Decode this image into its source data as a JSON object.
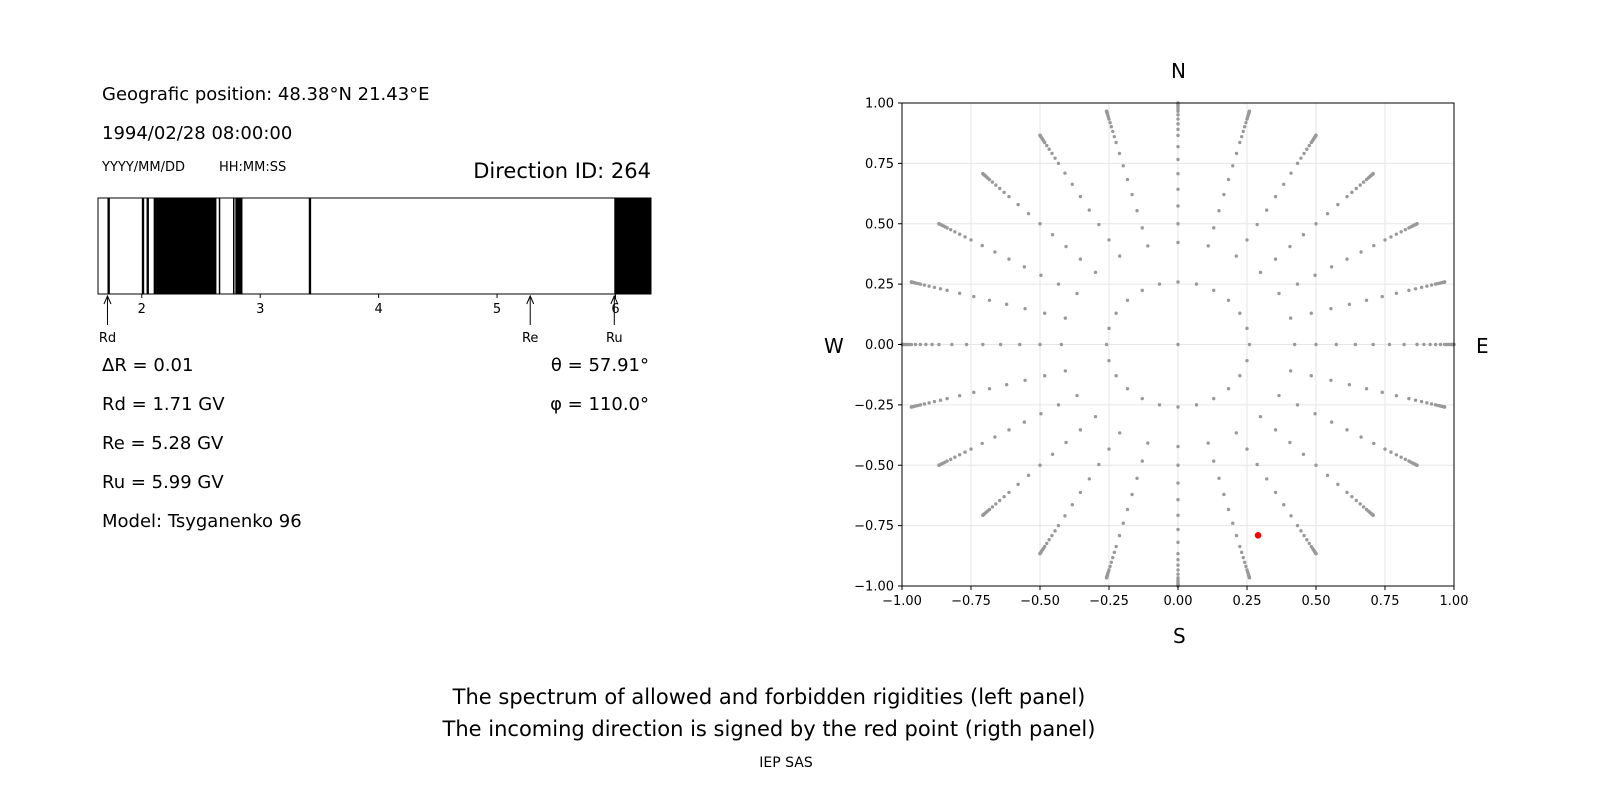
{
  "left_panel": {
    "geo_position": "Geografic position: 48.38°N 21.43°E",
    "datetime": "1994/02/28 08:00:00",
    "date_format_label": "YYYY/MM/DD",
    "time_format_label": "HH:MM:SS",
    "direction_id": "Direction ID: 264",
    "delta_r": "ΔR = 0.01",
    "rd": "Rd = 1.71 GV",
    "re": "Re = 5.28 GV",
    "ru": "Ru = 5.99 GV",
    "model": "Model: Tsyganenko 96",
    "theta": "θ = 57.91°",
    "phi": "φ = 110.0°",
    "marker_rd": "Rd",
    "marker_re": "Re",
    "marker_ru": "Ru"
  },
  "right_panel": {
    "north": "N",
    "south": "S",
    "west": "W",
    "east": "E"
  },
  "caption": {
    "line1": "The spectrum of allowed and forbidden rigidities (left panel)",
    "line2": "The incoming direction is signed by the red point (rigth panel)",
    "credit": "IEP SAS"
  },
  "chart_data": [
    {
      "type": "bar",
      "description_of_marks": "rigidity spectrum; black bands = forbidden rigidity intervals (GV)",
      "xlim": [
        1.63,
        6.3
      ],
      "xticks": [
        2,
        3,
        4,
        5,
        6
      ],
      "forbidden_bands": [
        [
          1.71,
          1.73
        ],
        [
          2.0,
          2.02
        ],
        [
          2.04,
          2.06
        ],
        [
          2.1,
          2.12
        ],
        [
          2.12,
          2.63
        ],
        [
          2.65,
          2.66
        ],
        [
          2.77,
          2.78
        ],
        [
          2.79,
          2.85
        ],
        [
          3.41,
          3.43
        ],
        [
          5.99,
          6.3
        ]
      ],
      "markers": [
        {
          "label": "Rd",
          "value": 1.71
        },
        {
          "label": "Re",
          "value": 5.28
        },
        {
          "label": "Ru",
          "value": 5.99
        }
      ]
    },
    {
      "type": "scatter",
      "xlim": [
        -1.0,
        1.0
      ],
      "ylim": [
        -1.0,
        1.0
      ],
      "xticks": [
        -1.0,
        -0.75,
        -0.5,
        -0.25,
        0.0,
        0.25,
        0.5,
        0.75,
        1.0
      ],
      "yticks": [
        -1.0,
        -0.75,
        -0.5,
        -0.25,
        0.0,
        0.25,
        0.5,
        0.75,
        1.0
      ],
      "xtick_labels": [
        "−1.00",
        "−0.75",
        "−0.50",
        "−0.25",
        "0.00",
        "0.25",
        "0.50",
        "0.75",
        "1.00"
      ],
      "ytick_labels": [
        "−1.00",
        "−0.75",
        "−0.50",
        "−0.25",
        "0.00",
        "0.25",
        "0.50",
        "0.75",
        "1.00"
      ],
      "grid": true,
      "grid_pattern": {
        "azimuth_step_deg": 15,
        "zenith_angles_deg": [
          0,
          15,
          25,
          30,
          35,
          40,
          45,
          50,
          55,
          60,
          63,
          66,
          69,
          72,
          75,
          77,
          79,
          81,
          83,
          85,
          87,
          89,
          90
        ],
        "color": "#999999"
      },
      "selected_point": {
        "x": 0.29,
        "y": -0.79,
        "color": "#ff0000"
      }
    }
  ]
}
